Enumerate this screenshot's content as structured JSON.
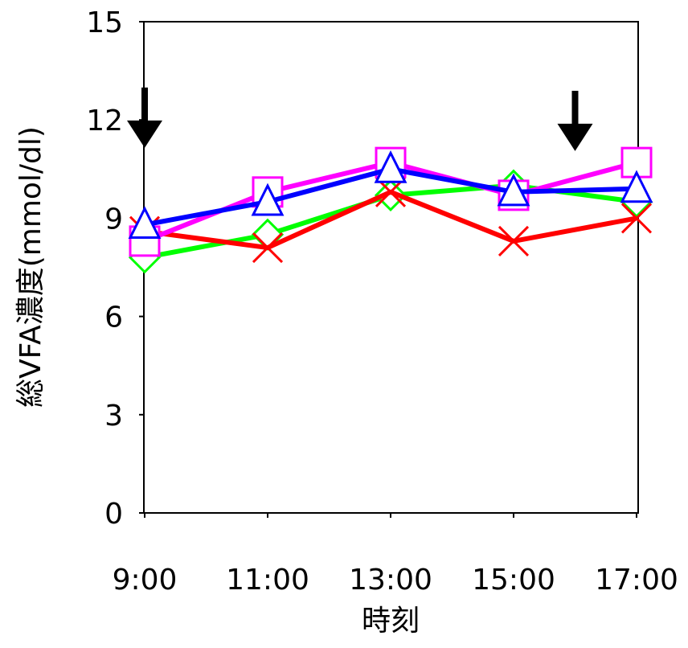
{
  "chart_data": {
    "type": "line",
    "xlabel": "時刻",
    "ylabel": "総VFA濃度(mmol/dl)",
    "categories": [
      "9:00",
      "11:00",
      "13:00",
      "15:00",
      "17:00"
    ],
    "ylim": [
      0,
      15
    ],
    "yticks": [
      0,
      3,
      6,
      9,
      12,
      15
    ],
    "grid": false,
    "legend": "none",
    "series": [
      {
        "marker": "diamond",
        "color": "#00ff00",
        "values": [
          7.8,
          8.5,
          9.7,
          10.0,
          9.5
        ]
      },
      {
        "marker": "x",
        "color": "#ff0000",
        "values": [
          8.6,
          8.1,
          9.8,
          8.3,
          9.0
        ]
      },
      {
        "marker": "square",
        "color": "#ff00ff",
        "values": [
          8.3,
          9.8,
          10.7,
          9.7,
          10.7
        ]
      },
      {
        "marker": "triangle",
        "color": "#0000ff",
        "values": [
          8.8,
          9.5,
          10.5,
          9.8,
          9.9
        ]
      }
    ],
    "annotations": [
      {
        "type": "arrow-down",
        "at_category": "9:00",
        "value": 11.1
      },
      {
        "type": "arrow-down",
        "at_category": "16:00",
        "value": 11.0
      }
    ]
  }
}
